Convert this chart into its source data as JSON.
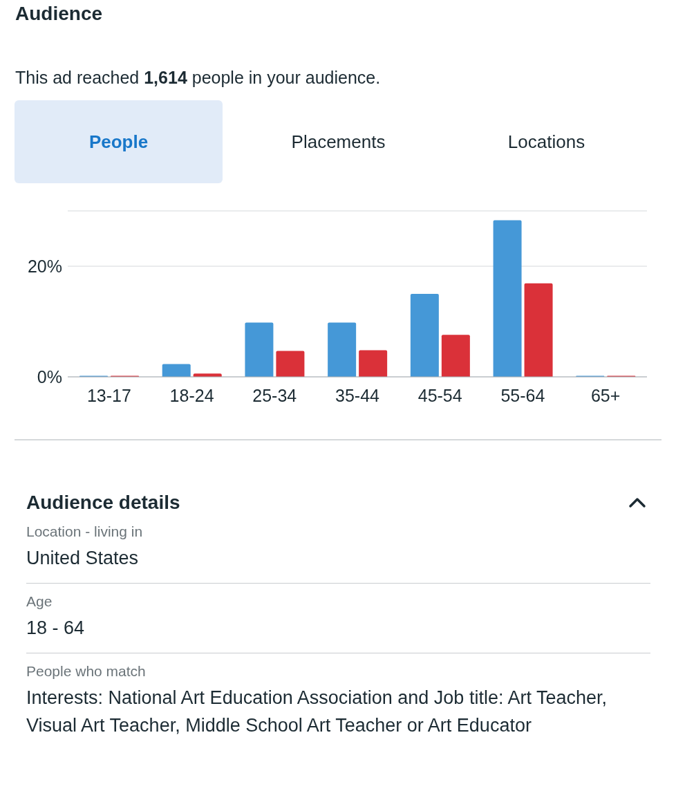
{
  "chart_data": {
    "type": "bar",
    "title": "Audience",
    "subtitle": "This ad reached 1,614 people in your audience.",
    "categories": [
      "13-17",
      "18-24",
      "25-34",
      "35-44",
      "45-54",
      "55-64",
      "65+"
    ],
    "series": [
      {
        "color": "#4598d7",
        "values": [
          0.2,
          2.3,
          9.8,
          9.8,
          15.0,
          28.3,
          0.2
        ]
      },
      {
        "color": "#da3139",
        "values": [
          0.2,
          0.6,
          4.7,
          4.8,
          7.6,
          16.9,
          0.2
        ]
      }
    ],
    "ylim": [
      0,
      30
    ],
    "yticks": [
      {
        "value": 0,
        "label": "0%"
      },
      {
        "value": 20,
        "label": "20%"
      }
    ],
    "grid": "y",
    "annotations": [
      "People",
      "Placements",
      "Locations",
      "Audience details",
      "Location - living in",
      "United States",
      "Age",
      "18 - 64",
      "People who match",
      "Interests: National Art Education Association and Job title: Art Teacher, Visual Art Teacher, Middle School Art Teacher or Art Educator"
    ]
  }
}
